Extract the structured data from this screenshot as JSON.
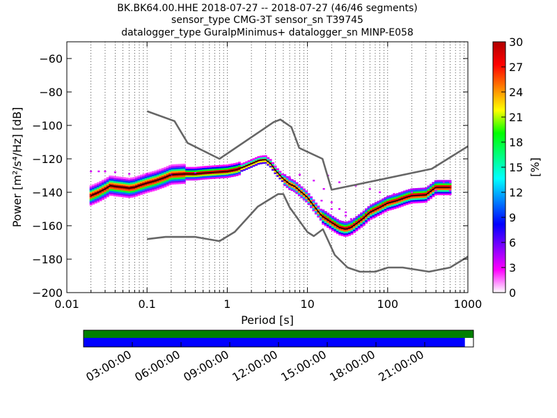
{
  "chart_data": {
    "type": "heatmap",
    "title_lines": [
      "BK.BK64.00.HHE   2018-07-27 -- 2018-07-27  (46/46 segments)",
      "sensor_type CMG-3T sensor_sn T39745",
      "datalogger_type GuralpMinimus+ datalogger_sn MINP-E058"
    ],
    "xlabel": "Period [s]",
    "ylabel": "Power [m²/s⁴/Hz] [dB]",
    "x_scale": "log",
    "xlim": [
      0.01,
      1000
    ],
    "ylim": [
      -200,
      -50
    ],
    "x_ticks": [
      {
        "value": 0.01,
        "label": "0.01"
      },
      {
        "value": 0.1,
        "label": "0.1"
      },
      {
        "value": 1,
        "label": "1"
      },
      {
        "value": 10,
        "label": "10"
      },
      {
        "value": 100,
        "label": "100"
      },
      {
        "value": 1000,
        "label": "1000"
      }
    ],
    "y_ticks": [
      {
        "value": -60,
        "label": "−60"
      },
      {
        "value": -80,
        "label": "−80"
      },
      {
        "value": -100,
        "label": "−100"
      },
      {
        "value": -120,
        "label": "−120"
      },
      {
        "value": -140,
        "label": "−140"
      },
      {
        "value": -160,
        "label": "−160"
      },
      {
        "value": -180,
        "label": "−180"
      },
      {
        "value": -200,
        "label": "−200"
      }
    ],
    "grid": "dotted-vertical-log",
    "nhnm": {
      "x": [
        0.1,
        0.22,
        0.32,
        0.8,
        3.8,
        4.6,
        6.3,
        7.9,
        15.4,
        20,
        354,
        1000
      ],
      "y": [
        -91.5,
        -97.4,
        -110.5,
        -120,
        -98,
        -96.5,
        -101,
        -113.5,
        -120,
        -138.5,
        -126,
        -112.5
      ]
    },
    "nlnm": {
      "x": [
        0.1,
        0.17,
        0.4,
        0.8,
        1.24,
        2.4,
        4.3,
        5,
        6,
        10,
        12,
        15.6,
        21.9,
        31.6,
        45,
        70,
        101,
        154,
        328,
        600,
        1000
      ],
      "y": [
        -168,
        -166.7,
        -166.7,
        -169.2,
        -163.7,
        -148.6,
        -141.1,
        -141.1,
        -149,
        -163.8,
        -166.2,
        -162.1,
        -177.5,
        -185,
        -187.5,
        -187.5,
        -185,
        -185,
        -187.5,
        -185,
        -178.5
      ]
    },
    "psd_mode": {
      "x": [
        0.02,
        0.025,
        0.03,
        0.035,
        0.04,
        0.05,
        0.06,
        0.07,
        0.08,
        0.1,
        0.13,
        0.17,
        0.2,
        0.3,
        0.4,
        0.5,
        0.7,
        1,
        1.3,
        1.6,
        2,
        2.5,
        3,
        3.5,
        4,
        5,
        6,
        7,
        8,
        10,
        12,
        15,
        20,
        25,
        30,
        35,
        40,
        50,
        60,
        80,
        100,
        130,
        170,
        200,
        300,
        400,
        600
      ],
      "y": [
        -142,
        -140,
        -138,
        -136,
        -136.5,
        -137,
        -137.5,
        -137,
        -136,
        -134.5,
        -133,
        -131,
        -129.5,
        -129,
        -129,
        -128.5,
        -128,
        -127.5,
        -126.5,
        -125,
        -123,
        -121,
        -120.5,
        -123,
        -127,
        -132,
        -135,
        -136.5,
        -139,
        -143,
        -148,
        -154,
        -158,
        -161,
        -162,
        -161,
        -159,
        -155.5,
        -152,
        -149,
        -146.5,
        -145,
        -143,
        -142,
        -141.5,
        -137,
        -137
      ]
    },
    "colorbar": {
      "label": "[%]",
      "min": 0,
      "max": 30,
      "ticks": [
        {
          "value": 0,
          "label": "0"
        },
        {
          "value": 3,
          "label": "3"
        },
        {
          "value": 6,
          "label": "6"
        },
        {
          "value": 9,
          "label": "9"
        },
        {
          "value": 12,
          "label": "12"
        },
        {
          "value": 15,
          "label": "15"
        },
        {
          "value": 18,
          "label": "18"
        },
        {
          "value": 21,
          "label": "21"
        },
        {
          "value": 24,
          "label": "24"
        },
        {
          "value": 27,
          "label": "27"
        },
        {
          "value": 30,
          "label": "30"
        }
      ],
      "colors": [
        "#ffffff",
        "#ff00ff",
        "#8000ff",
        "#0000ff",
        "#0080ff",
        "#00ffff",
        "#00ff80",
        "#00ff00",
        "#ffff00",
        "#ff8000",
        "#ff0000",
        "#b00000"
      ]
    },
    "coverage": {
      "time_ticks": [
        "03:00:00",
        "06:00:00",
        "09:00:00",
        "12:00:00",
        "15:00:00",
        "18:00:00",
        "21:00:00"
      ],
      "tick_hours": [
        3,
        6,
        9,
        12,
        15,
        18,
        21
      ],
      "range_hours": [
        0,
        24
      ],
      "data_bar_color": "#008000",
      "psd_bar_color": "#0000ff",
      "psd_end_fraction": 0.978
    }
  }
}
